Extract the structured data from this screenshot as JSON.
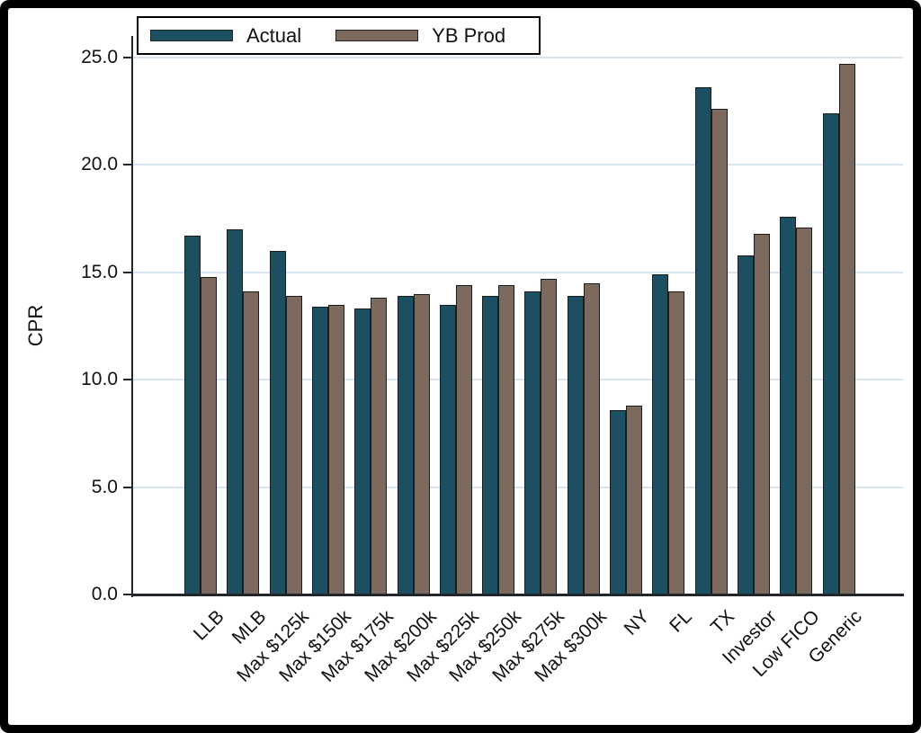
{
  "window": {
    "background": "#ffffff",
    "frame_color": "#000000"
  },
  "chart_data": {
    "type": "bar",
    "title": "",
    "xlabel": "",
    "ylabel": "CPR",
    "ylim": [
      0,
      25
    ],
    "grid": "horizontal",
    "legend_position": "top-left",
    "y_ticks": [
      {
        "value": 0,
        "label": "0.0"
      },
      {
        "value": 5,
        "label": "5.0"
      },
      {
        "value": 10,
        "label": "10.0"
      },
      {
        "value": 15,
        "label": "15.0"
      },
      {
        "value": 20,
        "label": "20.0"
      },
      {
        "value": 25,
        "label": "25.0"
      }
    ],
    "categories": [
      "LLB",
      "MLB",
      "Max $125k",
      "Max $150k",
      "Max $175k",
      "Max $200k",
      "Max $225k",
      "Max $250k",
      "Max $275k",
      "Max $300k",
      "NY",
      "FL",
      "TX",
      "Investor",
      "Low FICO",
      "Generic"
    ],
    "series": [
      {
        "name": "Actual",
        "color": "#1d4f63",
        "values": [
          16.7,
          17.0,
          16.0,
          13.4,
          13.3,
          13.9,
          13.5,
          13.9,
          14.1,
          13.9,
          8.6,
          14.9,
          23.6,
          15.8,
          17.6,
          22.4
        ]
      },
      {
        "name": "YB Prod",
        "color": "#7b6a5d",
        "values": [
          14.8,
          14.1,
          13.9,
          13.5,
          13.8,
          14.0,
          14.4,
          14.4,
          14.7,
          14.5,
          8.8,
          14.1,
          22.6,
          16.8,
          17.1,
          24.7
        ]
      }
    ],
    "colors": {
      "gridline": "#d5e4ef",
      "axis": "#20262b",
      "bar_border": "#1c1c1c",
      "text": "#111111"
    }
  }
}
